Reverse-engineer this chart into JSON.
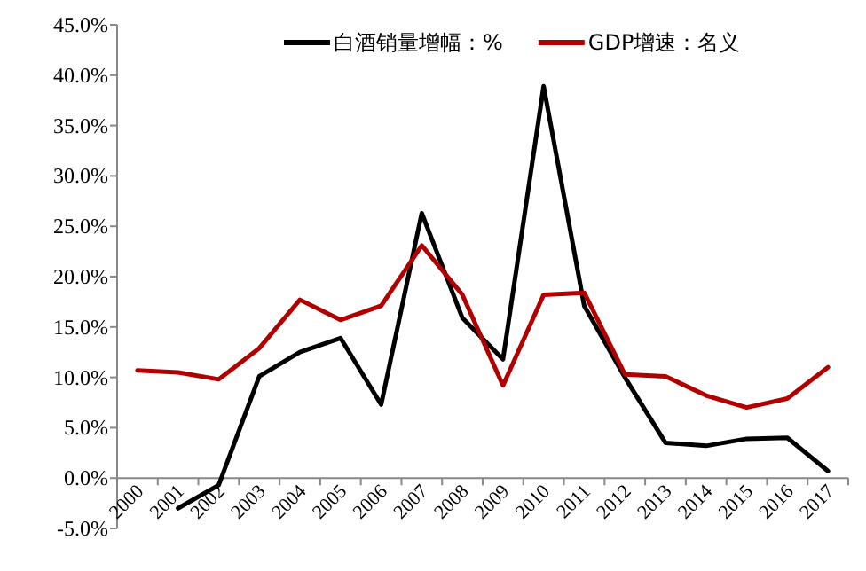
{
  "chart_data": {
    "type": "line",
    "categories": [
      "2000",
      "2001",
      "2002",
      "2003",
      "2004",
      "2005",
      "2006",
      "2007",
      "2008",
      "2009",
      "2010",
      "2011",
      "2012",
      "2013",
      "2014",
      "2015",
      "2016",
      "2017"
    ],
    "series": [
      {
        "name": "白酒销量增幅：%",
        "color": "#000000",
        "values": [
          null,
          -3.0,
          -0.7,
          10.1,
          12.5,
          13.9,
          7.3,
          26.3,
          15.9,
          11.8,
          38.9,
          17.1,
          10.0,
          3.5,
          3.2,
          3.9,
          4.0,
          0.7
        ]
      },
      {
        "name": "GDP增速：名义",
        "color": "#b00000",
        "values": [
          10.7,
          10.5,
          9.8,
          12.9,
          17.7,
          15.7,
          17.1,
          23.1,
          18.2,
          9.2,
          18.2,
          18.4,
          10.3,
          10.1,
          8.2,
          7.0,
          7.9,
          11.0
        ]
      }
    ],
    "ylim": [
      -5,
      45
    ],
    "yticks": [
      {
        "value": -5,
        "label": "-5.0%"
      },
      {
        "value": 0,
        "label": "0.0%"
      },
      {
        "value": 5,
        "label": "5.0%"
      },
      {
        "value": 10,
        "label": "10.0%"
      },
      {
        "value": 15,
        "label": "15.0%"
      },
      {
        "value": 20,
        "label": "20.0%"
      },
      {
        "value": 25,
        "label": "25.0%"
      },
      {
        "value": 30,
        "label": "30.0%"
      },
      {
        "value": 35,
        "label": "35.0%"
      },
      {
        "value": 40,
        "label": "40.0%"
      },
      {
        "value": 45,
        "label": "45.0%"
      }
    ],
    "legend": "top",
    "grid": false,
    "marker": "none",
    "line_style": "solid"
  }
}
